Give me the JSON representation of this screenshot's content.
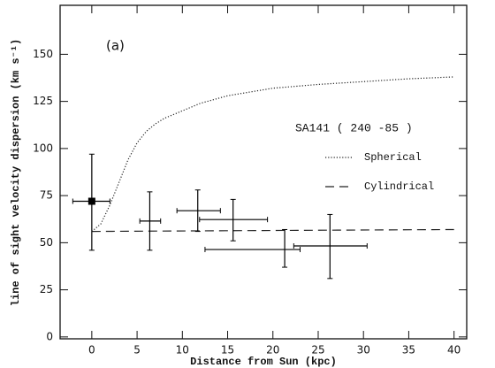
{
  "chart_data": {
    "type": "scatter",
    "x_label": "Distance from Sun (kpc)",
    "y_label": "line of sight velocity dispersion (km s⁻¹)",
    "annotation": "(a)",
    "legend_title": "SA141 ( 240 -85 )",
    "xlim": [
      -3.5,
      41.4
    ],
    "ylim": [
      -1,
      176
    ],
    "xticks": [
      0,
      5,
      10,
      15,
      20,
      25,
      30,
      35,
      40
    ],
    "yticks": [
      0,
      25,
      50,
      75,
      100,
      125,
      150
    ],
    "points": {
      "color": "#000000",
      "x": [
        0,
        6.4,
        11.7,
        15.6,
        21.3,
        26.3
      ],
      "y": [
        72,
        61.5,
        67,
        62.3,
        46.4,
        48.3
      ],
      "xmin": [
        -2.1,
        5.3,
        9.4,
        11.9,
        12.5,
        22.3
      ],
      "xmax": [
        2,
        7.6,
        14.2,
        19.4,
        23,
        30.4
      ],
      "ymin": [
        46,
        46,
        56,
        51,
        37,
        31
      ],
      "ymax": [
        97,
        77,
        78,
        73,
        57,
        65
      ],
      "markers": [
        "square",
        "none",
        "none",
        "none",
        "none",
        "none"
      ]
    },
    "curves": [
      {
        "name": "Spherical",
        "style": "dotted",
        "color": "#222222",
        "x": [
          0,
          1,
          2,
          3,
          4,
          5,
          6,
          7,
          8,
          10,
          12,
          15,
          20,
          25,
          30,
          35,
          40
        ],
        "values": [
          56,
          60,
          70,
          82,
          94,
          103,
          109,
          113,
          116,
          120,
          124,
          128,
          132,
          134,
          135.5,
          137,
          138
        ]
      },
      {
        "name": "Cylindrical",
        "style": "dashed",
        "color": "#222222",
        "x": [
          0,
          40
        ],
        "values": [
          56,
          57
        ]
      }
    ]
  }
}
